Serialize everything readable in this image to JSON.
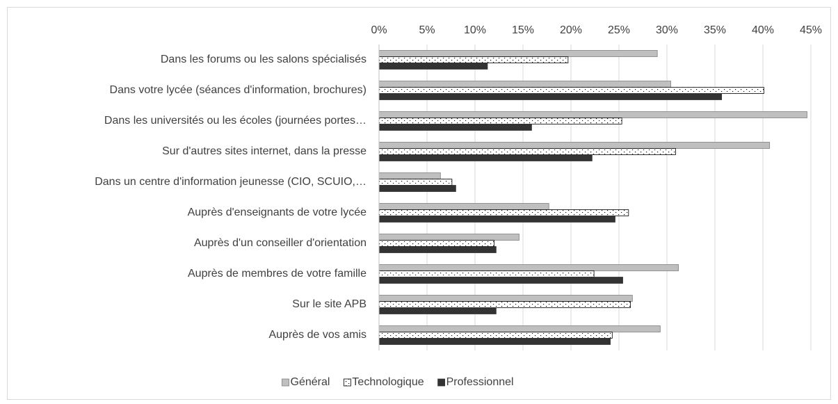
{
  "chart_data": {
    "type": "hbar",
    "categories": [
      "Dans les forums ou les salons spécialisés",
      "Dans votre lycée (séances d'information, brochures)",
      "Dans les universités ou les écoles (journées portes…",
      "Sur d'autres sites internet, dans la presse",
      "Dans un centre d'information jeunesse (CIO, SCUIO,…",
      "Auprès d'enseignants de votre lycée",
      "Auprès d'un conseiller d'orientation",
      "Auprès de membres de votre famille",
      "Sur le site APB",
      "Auprès de vos amis"
    ],
    "series": [
      {
        "name": "Général",
        "color": "#bfbfbf",
        "values": [
          29.0,
          30.4,
          44.6,
          40.7,
          6.4,
          17.7,
          14.6,
          31.2,
          26.4,
          29.3
        ]
      },
      {
        "name": "Technologique",
        "color": "#ffffff",
        "pattern": "dots",
        "values": [
          19.7,
          40.1,
          25.3,
          30.9,
          7.6,
          26.0,
          12.0,
          22.4,
          26.2,
          24.3
        ]
      },
      {
        "name": "Professionnel",
        "color": "#333333",
        "values": [
          11.3,
          35.7,
          15.9,
          22.2,
          8.0,
          24.6,
          12.2,
          25.4,
          12.2,
          24.1
        ]
      }
    ],
    "xlim": [
      0,
      45
    ],
    "xticks": [
      {
        "value": 0,
        "label": "0%"
      },
      {
        "value": 5,
        "label": "5%"
      },
      {
        "value": 10,
        "label": "10%"
      },
      {
        "value": 15,
        "label": "15%"
      },
      {
        "value": 20,
        "label": "20%"
      },
      {
        "value": 25,
        "label": "25%"
      },
      {
        "value": 30,
        "label": "30%"
      },
      {
        "value": 35,
        "label": "35%"
      },
      {
        "value": 40,
        "label": "40%"
      },
      {
        "value": 45,
        "label": "45%"
      }
    ],
    "grid": true,
    "legend": "bottom"
  }
}
